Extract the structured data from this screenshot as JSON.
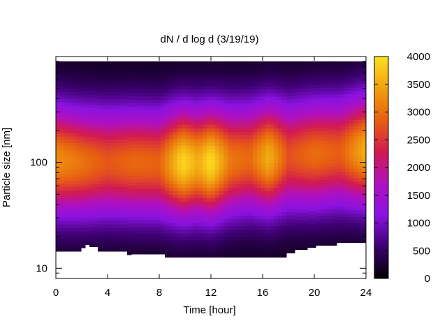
{
  "chart_data": {
    "type": "heatmap",
    "title": "dN / d log d (3/19/19)",
    "xlabel": "Time [hour]",
    "ylabel": "Particle size [nm]",
    "xlim": [
      0,
      24
    ],
    "ylim": [
      8,
      1000
    ],
    "y_scale": "log",
    "x_ticks": [
      "0",
      "4",
      "8",
      "12",
      "16",
      "20",
      "24"
    ],
    "y_ticks": [
      "10",
      "100"
    ],
    "colorbar": {
      "label_ticks": [
        "0",
        "500",
        "1000",
        "1500",
        "2000",
        "2500",
        "3000",
        "3500",
        "4000"
      ],
      "range": [
        0,
        4000
      ],
      "palette": [
        "#000000",
        "#3c0070",
        "#8a12e0",
        "#b010c0",
        "#d21a50",
        "#e86010",
        "#f0a010",
        "#fde020"
      ]
    },
    "data_top_nm": 900,
    "lower_size_limit_nm": [
      {
        "x": 0,
        "d": 14.5
      },
      {
        "x": 1.6,
        "d": 14.5
      },
      {
        "x": 1.8,
        "d": 15.6
      },
      {
        "x": 2.2,
        "d": 16.7
      },
      {
        "x": 2.6,
        "d": 16.0
      },
      {
        "x": 3.4,
        "d": 14.5
      },
      {
        "x": 5.4,
        "d": 13.4
      },
      {
        "x": 5.8,
        "d": 13.6
      },
      {
        "x": 8.3,
        "d": 12.7
      },
      {
        "x": 17.6,
        "d": 12.7
      },
      {
        "x": 18.0,
        "d": 14.0
      },
      {
        "x": 18.6,
        "d": 15.0
      },
      {
        "x": 19.6,
        "d": 15.8
      },
      {
        "x": 20.0,
        "d": 16.5
      },
      {
        "x": 21.6,
        "d": 17.5
      },
      {
        "x": 24,
        "d": 17.5
      }
    ],
    "mode_peaks": [
      {
        "x": 0.0,
        "center_nm": 105,
        "peak": 3150
      },
      {
        "x": 2.0,
        "center_nm": 100,
        "peak": 2900
      },
      {
        "x": 4.0,
        "center_nm": 100,
        "peak": 2650
      },
      {
        "x": 6.0,
        "center_nm": 100,
        "peak": 2800
      },
      {
        "x": 8.0,
        "center_nm": 98,
        "peak": 2750
      },
      {
        "x": 9.8,
        "center_nm": 100,
        "peak": 3800
      },
      {
        "x": 11.0,
        "center_nm": 100,
        "peak": 3400
      },
      {
        "x": 12.0,
        "center_nm": 100,
        "peak": 3850
      },
      {
        "x": 13.5,
        "center_nm": 105,
        "peak": 2950
      },
      {
        "x": 15.0,
        "center_nm": 110,
        "peak": 2800
      },
      {
        "x": 16.5,
        "center_nm": 112,
        "peak": 3450
      },
      {
        "x": 18.0,
        "center_nm": 115,
        "peak": 2600
      },
      {
        "x": 20.0,
        "center_nm": 120,
        "peak": 2850
      },
      {
        "x": 22.0,
        "center_nm": 125,
        "peak": 2700
      },
      {
        "x": 23.8,
        "center_nm": 130,
        "peak": 3400
      }
    ]
  }
}
